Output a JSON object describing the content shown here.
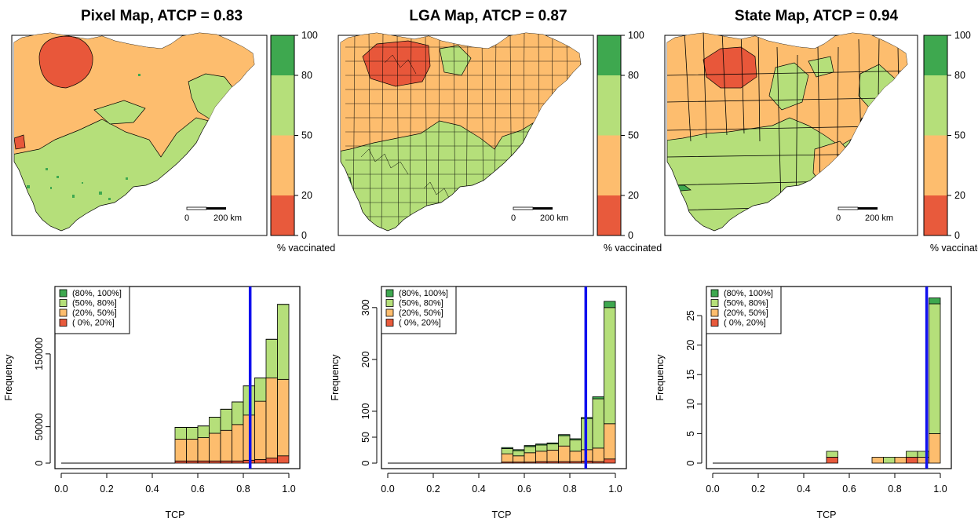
{
  "colors": {
    "c0_20": "#e85a3c",
    "c20_50": "#fdbd6e",
    "c50_80": "#b5df7a",
    "c80_100": "#3ea84f",
    "atcp_line": "#1010ee",
    "pixel_dark": "#e8573a"
  },
  "colorbar": {
    "ticks": [
      "100",
      "80",
      "50",
      "20",
      "0"
    ],
    "label": "% vaccinated"
  },
  "scalebar": {
    "left": "0",
    "right": "200 km"
  },
  "chart_data": [
    {
      "type": "map",
      "title": "Pixel Map, ATCP = 0.83",
      "description_classes": [
        "0-20",
        "20-50",
        "50-80",
        "80-100"
      ]
    },
    {
      "type": "map",
      "title": "LGA Map, ATCP = 0.87"
    },
    {
      "type": "map",
      "title": "State Map, ATCP = 0.94"
    },
    {
      "type": "bar",
      "stacked": true,
      "xlabel": "TCP",
      "ylabel": "Frequency",
      "x_ticks": [
        "0.0",
        "0.2",
        "0.4",
        "0.6",
        "0.8",
        "1.0"
      ],
      "ylim": [
        0,
        235000
      ],
      "y_ticks": [
        0,
        50000,
        150000
      ],
      "y_tick_labels": [
        "0",
        "50000",
        "150000"
      ],
      "bin_edges": [
        0.5,
        0.55,
        0.6,
        0.65,
        0.7,
        0.75,
        0.8,
        0.85,
        0.9,
        0.95,
        1.0
      ],
      "atcp": 0.83,
      "legend": [
        "(80%, 100%]",
        "(50%,  80%]",
        "(20%,  50%]",
        "( 0%,  20%]"
      ],
      "series": [
        {
          "name": "( 0%,  20%]",
          "values": [
            3000,
            3000,
            3000,
            3000,
            3000,
            3000,
            4000,
            5000,
            7000,
            10000
          ]
        },
        {
          "name": "(20%,  50%]",
          "values": [
            30000,
            30000,
            32000,
            38000,
            42000,
            50000,
            62000,
            80000,
            110000,
            105000
          ]
        },
        {
          "name": "(50%,  80%]",
          "values": [
            16000,
            16000,
            16000,
            22000,
            29000,
            31000,
            40000,
            32000,
            53000,
            103000
          ]
        },
        {
          "name": "(80%, 100%]",
          "values": [
            100,
            100,
            100,
            100,
            100,
            100,
            100,
            100,
            100,
            100
          ]
        }
      ]
    },
    {
      "type": "bar",
      "stacked": true,
      "xlabel": "TCP",
      "ylabel": "Frequency",
      "x_ticks": [
        "0.0",
        "0.2",
        "0.4",
        "0.6",
        "0.8",
        "1.0"
      ],
      "ylim": [
        0,
        330
      ],
      "y_ticks": [
        0,
        50,
        100,
        200,
        300
      ],
      "y_tick_labels": [
        "0",
        "50",
        "100",
        "200",
        "300"
      ],
      "bin_edges": [
        0.5,
        0.55,
        0.6,
        0.65,
        0.7,
        0.75,
        0.8,
        0.85,
        0.9,
        0.95,
        1.0
      ],
      "atcp": 0.87,
      "legend": [
        "(80%, 100%]",
        "(50%,  80%]",
        "(20%,  50%]",
        "( 0%,  20%]"
      ],
      "series": [
        {
          "name": "( 0%,  20%]",
          "values": [
            2,
            2,
            2,
            3,
            3,
            3,
            3,
            4,
            3,
            8
          ]
        },
        {
          "name": "(20%,  50%]",
          "values": [
            16,
            12,
            18,
            20,
            22,
            30,
            20,
            22,
            26,
            68
          ]
        },
        {
          "name": "(50%,  80%]",
          "values": [
            10,
            10,
            12,
            12,
            12,
            20,
            22,
            60,
            95,
            224
          ]
        },
        {
          "name": "(80%, 100%]",
          "values": [
            2,
            2,
            2,
            2,
            2,
            2,
            2,
            2,
            4,
            12
          ]
        }
      ]
    },
    {
      "type": "bar",
      "stacked": true,
      "xlabel": "TCP",
      "ylabel": "Frequency",
      "x_ticks": [
        "0.0",
        "0.2",
        "0.4",
        "0.6",
        "0.8",
        "1.0"
      ],
      "ylim": [
        0,
        29
      ],
      "y_ticks": [
        0,
        5,
        10,
        15,
        20,
        25
      ],
      "y_tick_labels": [
        "0",
        "5",
        "10",
        "15",
        "20",
        "25"
      ],
      "bin_edges": [
        0.5,
        0.55,
        0.6,
        0.65,
        0.7,
        0.75,
        0.8,
        0.85,
        0.9,
        0.95,
        1.0
      ],
      "atcp": 0.94,
      "legend": [
        "(80%, 100%]",
        "(50%,  80%]",
        "(20%,  50%]",
        "( 0%,  20%]"
      ],
      "series": [
        {
          "name": "( 0%,  20%]",
          "values": [
            1,
            0,
            0,
            0,
            0,
            0,
            0,
            1,
            0,
            0
          ]
        },
        {
          "name": "(20%,  50%]",
          "values": [
            0,
            0,
            0,
            0,
            1,
            0,
            1,
            0,
            1,
            5
          ]
        },
        {
          "name": "(50%,  80%]",
          "values": [
            1,
            0,
            0,
            0,
            0,
            1,
            0,
            1,
            1,
            22
          ]
        },
        {
          "name": "(80%, 100%]",
          "values": [
            0,
            0,
            0,
            0,
            0,
            0,
            0,
            0,
            0,
            1
          ]
        }
      ]
    }
  ]
}
